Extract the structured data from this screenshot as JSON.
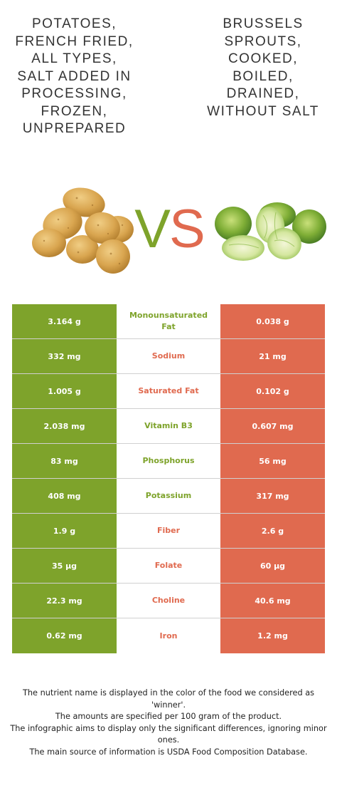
{
  "food_left": {
    "name": "Potatoes, french fried, all types, salt added in processing, frozen, unprepared",
    "color": "#7ea32b",
    "image_icon": "potatoes-image"
  },
  "food_right": {
    "name": "Brussels sprouts, cooked, boiled, drained, without salt",
    "color": "#e06a4f",
    "image_icon": "brussels-sprouts-image"
  },
  "vs": {
    "v": "V",
    "s": "S"
  },
  "nutrients": [
    {
      "name": "Monounsaturated Fat",
      "left": "3.164 g",
      "right": "0.038 g",
      "winner": "left"
    },
    {
      "name": "Sodium",
      "left": "332 mg",
      "right": "21 mg",
      "winner": "right"
    },
    {
      "name": "Saturated Fat",
      "left": "1.005 g",
      "right": "0.102 g",
      "winner": "right"
    },
    {
      "name": "Vitamin B3",
      "left": "2.038 mg",
      "right": "0.607 mg",
      "winner": "left"
    },
    {
      "name": "Phosphorus",
      "left": "83 mg",
      "right": "56 mg",
      "winner": "left"
    },
    {
      "name": "Potassium",
      "left": "408 mg",
      "right": "317 mg",
      "winner": "left"
    },
    {
      "name": "Fiber",
      "left": "1.9 g",
      "right": "2.6 g",
      "winner": "right"
    },
    {
      "name": "Folate",
      "left": "35 µg",
      "right": "60 µg",
      "winner": "right"
    },
    {
      "name": "Choline",
      "left": "22.3 mg",
      "right": "40.6 mg",
      "winner": "right"
    },
    {
      "name": "Iron",
      "left": "0.62 mg",
      "right": "1.2 mg",
      "winner": "right"
    }
  ],
  "footnote": [
    "The nutrient name is displayed in the color of the food we considered as 'winner'.",
    "The amounts are specified per 100 gram of the product.",
    "The infographic aims to display only the significant differences, ignoring minor ones.",
    "The main source of information is USDA Food Composition Database."
  ]
}
